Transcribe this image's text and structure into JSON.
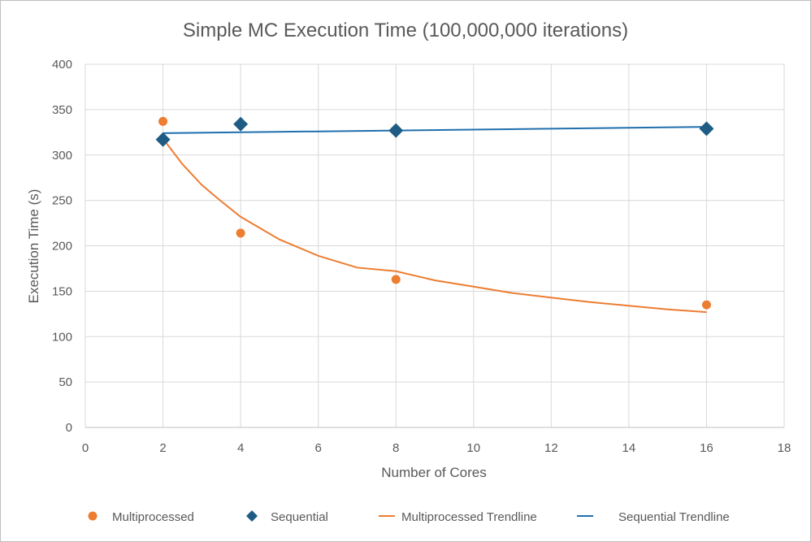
{
  "chart_data": {
    "type": "scatter",
    "title": "Simple MC Execution Time (100,000,000 iterations)",
    "xlabel": "Number of Cores",
    "ylabel": "Execution Time (s)",
    "xlim": [
      0,
      18
    ],
    "ylim": [
      0,
      400
    ],
    "xticks": [
      0,
      2,
      4,
      6,
      8,
      10,
      12,
      14,
      16,
      18
    ],
    "yticks": [
      0,
      50,
      100,
      150,
      200,
      250,
      300,
      350,
      400
    ],
    "grid": true,
    "legend_position": "bottom",
    "series": [
      {
        "name": "Multiprocessed",
        "kind": "points",
        "marker": "circle",
        "color": "#ED7D31",
        "x": [
          2,
          4,
          8,
          16
        ],
        "y": [
          337,
          214,
          163,
          135
        ]
      },
      {
        "name": "Sequential",
        "kind": "points",
        "marker": "diamond",
        "color": "#1F5C84",
        "x": [
          2,
          4,
          8,
          16
        ],
        "y": [
          317,
          334,
          327,
          329
        ]
      },
      {
        "name": "Multiprocessed Trendline",
        "kind": "trendline",
        "fit": "power",
        "color": "#ED7D31",
        "x": [
          2,
          2.5,
          3,
          3.5,
          4,
          5,
          6,
          7,
          8,
          9,
          10,
          11,
          12,
          13,
          14,
          15,
          16
        ],
        "y": [
          318,
          290,
          267,
          249,
          232,
          207,
          189,
          176,
          172,
          162,
          155,
          148,
          143,
          138,
          134,
          130,
          127
        ]
      },
      {
        "name": "Sequential Trendline",
        "kind": "trendline",
        "fit": "linear",
        "color": "#1F6FAE",
        "x": [
          2,
          16
        ],
        "y": [
          324,
          331
        ]
      }
    ]
  }
}
